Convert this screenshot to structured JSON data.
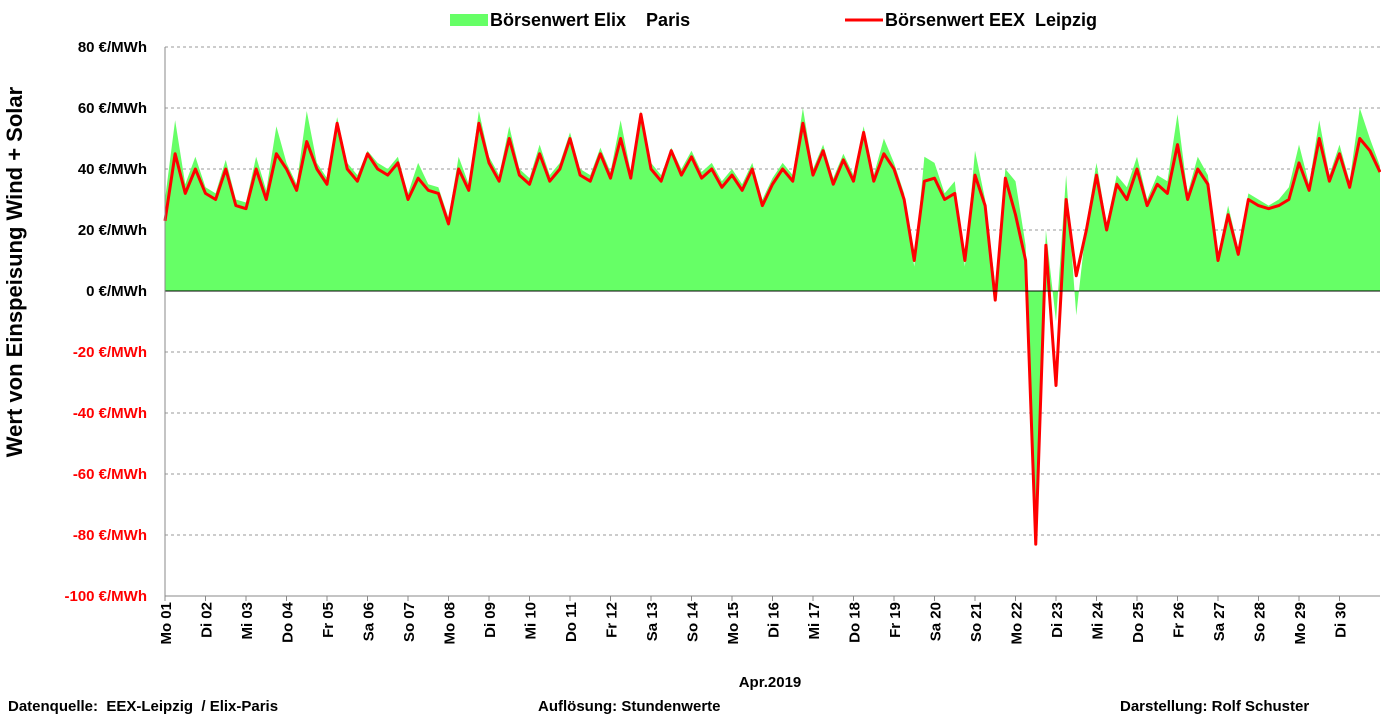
{
  "chart_data": {
    "type": "area-line",
    "legend": "top",
    "y_label": "Wert von Einspeisung Wind + Solar",
    "x_label": "Apr.2019",
    "notes": [
      "Datenquelle:  EEX-Leipzig  / Elix-Paris",
      "Auflösung: Stundenwerte",
      "Darstellung: Rolf Schuster"
    ],
    "ylim": [
      -100,
      80
    ],
    "yticks": [
      {
        "value": 80,
        "label": "80 €/MWh"
      },
      {
        "value": 60,
        "label": "60 €/MWh"
      },
      {
        "value": 40,
        "label": "40 €/MWh"
      },
      {
        "value": 20,
        "label": "20 €/MWh"
      },
      {
        "value": 0,
        "label": "0 €/MWh"
      },
      {
        "value": -20,
        "label": "-20 €/MWh"
      },
      {
        "value": -40,
        "label": "-40 €/MWh"
      },
      {
        "value": -60,
        "label": "-60 €/MWh"
      },
      {
        "value": -80,
        "label": "-80 €/MWh"
      },
      {
        "value": -100,
        "label": "-100 €/MWh"
      }
    ],
    "negative_tick_color": "#ff0000",
    "grid": true,
    "xlim": [
      0,
      30
    ],
    "xticks": [
      {
        "value": 0,
        "label": "Mo 01"
      },
      {
        "value": 1,
        "label": "Di 02"
      },
      {
        "value": 2,
        "label": "Mi 03"
      },
      {
        "value": 3,
        "label": "Do 04"
      },
      {
        "value": 4,
        "label": "Fr 05"
      },
      {
        "value": 5,
        "label": "Sa 06"
      },
      {
        "value": 6,
        "label": "So 07"
      },
      {
        "value": 7,
        "label": "Mo 08"
      },
      {
        "value": 8,
        "label": "Di 09"
      },
      {
        "value": 9,
        "label": "Mi 10"
      },
      {
        "value": 10,
        "label": "Do 11"
      },
      {
        "value": 11,
        "label": "Fr 12"
      },
      {
        "value": 12,
        "label": "Sa 13"
      },
      {
        "value": 13,
        "label": "So 14"
      },
      {
        "value": 14,
        "label": "Mo 15"
      },
      {
        "value": 15,
        "label": "Di 16"
      },
      {
        "value": 16,
        "label": "Mi 17"
      },
      {
        "value": 17,
        "label": "Do 18"
      },
      {
        "value": 18,
        "label": "Fr 19"
      },
      {
        "value": 19,
        "label": "Sa 20"
      },
      {
        "value": 20,
        "label": "So 21"
      },
      {
        "value": 21,
        "label": "Mo 22"
      },
      {
        "value": 22,
        "label": "Di 23"
      },
      {
        "value": 23,
        "label": "Mi 24"
      },
      {
        "value": 24,
        "label": "Do 25"
      },
      {
        "value": 25,
        "label": "Fr 26"
      },
      {
        "value": 26,
        "label": "Sa 27"
      },
      {
        "value": 27,
        "label": "So 28"
      },
      {
        "value": 28,
        "label": "Mo 29"
      },
      {
        "value": 29,
        "label": "Di 30"
      }
    ],
    "x": [
      0,
      0.25,
      0.5,
      0.75,
      1,
      1.25,
      1.5,
      1.75,
      2,
      2.25,
      2.5,
      2.75,
      3,
      3.25,
      3.5,
      3.75,
      4,
      4.25,
      4.5,
      4.75,
      5,
      5.25,
      5.5,
      5.75,
      6,
      6.25,
      6.5,
      6.75,
      7,
      7.25,
      7.5,
      7.75,
      8,
      8.25,
      8.5,
      8.75,
      9,
      9.25,
      9.5,
      9.75,
      10,
      10.25,
      10.5,
      10.75,
      11,
      11.25,
      11.5,
      11.75,
      12,
      12.25,
      12.5,
      12.75,
      13,
      13.25,
      13.5,
      13.75,
      14,
      14.25,
      14.5,
      14.75,
      15,
      15.25,
      15.5,
      15.75,
      16,
      16.25,
      16.5,
      16.75,
      17,
      17.25,
      17.5,
      17.75,
      18,
      18.25,
      18.5,
      18.75,
      19,
      19.25,
      19.5,
      19.75,
      20,
      20.25,
      20.5,
      20.75,
      21,
      21.25,
      21.5,
      21.75,
      22,
      22.25,
      22.5,
      22.75,
      23,
      23.25,
      23.5,
      23.75,
      24,
      24.25,
      24.5,
      24.75,
      25,
      25.25,
      25.5,
      25.75,
      26,
      26.25,
      26.5,
      26.75,
      27,
      27.25,
      27.5,
      27.75,
      28,
      28.25,
      28.5,
      28.75,
      29,
      29.25,
      29.5,
      29.75,
      30
    ],
    "series": [
      {
        "name": "Börsenwert Elix    Paris",
        "kind": "area",
        "color": "#66ff66",
        "values": [
          30,
          56,
          35,
          44,
          34,
          32,
          43,
          30,
          29,
          44,
          33,
          54,
          42,
          35,
          59,
          42,
          37,
          57,
          42,
          38,
          46,
          42,
          40,
          44,
          32,
          42,
          35,
          34,
          24,
          44,
          35,
          59,
          44,
          38,
          54,
          40,
          37,
          48,
          38,
          42,
          52,
          40,
          38,
          47,
          39,
          56,
          39,
          59,
          42,
          38,
          47,
          40,
          46,
          39,
          42,
          36,
          40,
          35,
          42,
          30,
          37,
          42,
          38,
          60,
          40,
          48,
          37,
          45,
          38,
          54,
          38,
          50,
          42,
          32,
          8,
          44,
          42,
          32,
          36,
          8,
          46,
          30,
          2,
          40,
          36,
          15,
          -80,
          20,
          -10,
          38,
          -8,
          22,
          42,
          22,
          38,
          34,
          44,
          30,
          38,
          36,
          58,
          32,
          44,
          38,
          12,
          28,
          14,
          32,
          30,
          28,
          30,
          34,
          48,
          35,
          56,
          38,
          48,
          36,
          60,
          50,
          41
        ]
      },
      {
        "name": "Börsenwert EEX  Leipzig",
        "kind": "line",
        "color": "#ff0000",
        "values": [
          23,
          45,
          32,
          40,
          32,
          30,
          40,
          28,
          27,
          40,
          30,
          45,
          40,
          33,
          49,
          40,
          35,
          55,
          40,
          36,
          45,
          40,
          38,
          42,
          30,
          37,
          33,
          32,
          22,
          40,
          33,
          55,
          42,
          36,
          50,
          38,
          35,
          45,
          36,
          40,
          50,
          38,
          36,
          45,
          37,
          50,
          37,
          58,
          40,
          36,
          46,
          38,
          44,
          37,
          40,
          34,
          38,
          33,
          40,
          28,
          35,
          40,
          36,
          55,
          38,
          46,
          35,
          43,
          36,
          52,
          36,
          45,
          40,
          30,
          10,
          36,
          37,
          30,
          32,
          10,
          38,
          28,
          -3,
          37,
          25,
          10,
          -83,
          15,
          -31,
          30,
          5,
          20,
          38,
          20,
          35,
          30,
          40,
          28,
          35,
          32,
          48,
          30,
          40,
          35,
          10,
          25,
          12,
          30,
          28,
          27,
          28,
          30,
          42,
          33,
          50,
          36,
          45,
          34,
          50,
          46,
          39
        ]
      }
    ]
  }
}
